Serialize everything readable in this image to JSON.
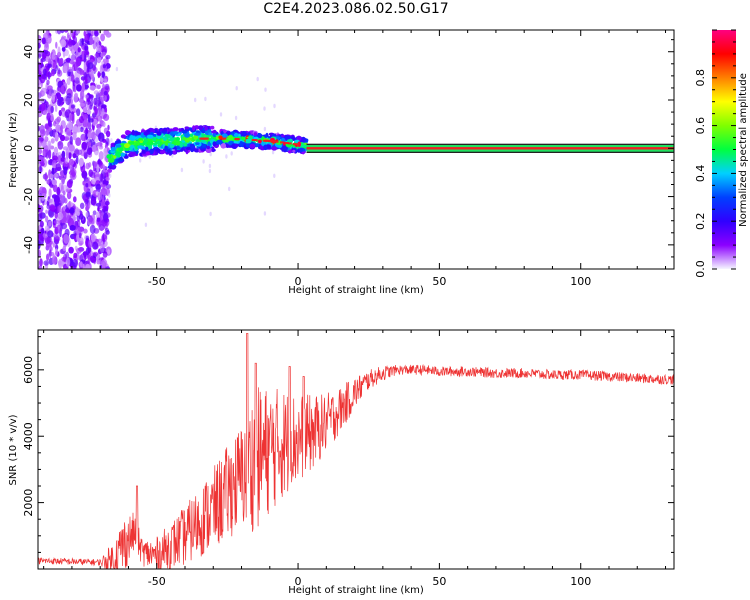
{
  "title": "C2E4.2023.086.02.50.G17",
  "colors": {
    "spectrum_low": "#8a2be2",
    "snr_line": "#ee3333",
    "center_line": "#ee2222",
    "colorbar": [
      "#f5f5ff",
      "#8b00ff",
      "#3000ff",
      "#0040ff",
      "#00d0ff",
      "#00ff40",
      "#80ff00",
      "#ffff00",
      "#ff8000",
      "#ff0000",
      "#ff0080"
    ]
  },
  "chart_data": [
    {
      "type": "heatmap",
      "xlabel": "Height of straight line (km)",
      "ylabel": "Frequency (Hz)",
      "xlim": [
        -92,
        133
      ],
      "ylim": [
        -50,
        49
      ],
      "xticks": [
        -50,
        0,
        50,
        100
      ],
      "xtick_labels": [
        "-50",
        "0",
        "50",
        "100"
      ],
      "yticks": [
        -40,
        -20,
        0,
        20,
        40
      ],
      "ytick_labels": [
        "-40",
        "-20",
        "0",
        "20",
        "40"
      ],
      "colorbar": {
        "label": "Normalized spectral amplitude",
        "range": [
          0,
          1
        ],
        "ticks": [
          0.0,
          0.2,
          0.4,
          0.6,
          0.8
        ],
        "tick_labels": [
          "0.0",
          "0.2",
          "0.4",
          "0.6",
          "0.8"
        ]
      },
      "regions": [
        {
          "name": "noise",
          "x": [
            -92,
            -67
          ],
          "freq": [
            -50,
            49
          ],
          "amplitude": 0.08
        },
        {
          "name": "trace",
          "x": [
            -67,
            3
          ],
          "center_freq": [
            -5,
            2,
            3,
            4,
            4,
            3,
            1
          ],
          "center_x": [
            -67,
            -60,
            -45,
            -35,
            -25,
            -10,
            3
          ],
          "amplitude": 0.45
        },
        {
          "name": "carrier",
          "x": [
            3,
            133
          ],
          "freq": 0,
          "amplitude": 1.0
        }
      ]
    },
    {
      "type": "line",
      "xlabel": "Height of straight line (km)",
      "ylabel": "SNR (10 * v/v)",
      "xlim": [
        -92,
        133
      ],
      "ylim": [
        0,
        7200
      ],
      "xticks": [
        -50,
        0,
        50,
        100
      ],
      "xtick_labels": [
        "-50",
        "0",
        "50",
        "100"
      ],
      "yticks": [
        2000,
        4000,
        6000
      ],
      "ytick_labels": [
        "2000",
        "4000",
        "6000"
      ],
      "envelope": {
        "x": [
          -92,
          -70,
          -65,
          -62,
          -58,
          -55,
          -50,
          -45,
          -40,
          -35,
          -30,
          -25,
          -20,
          -15,
          -10,
          -5,
          0,
          5,
          10,
          15,
          20,
          25,
          30,
          35,
          40,
          45,
          50,
          60,
          70,
          80,
          90,
          100,
          110,
          120,
          133
        ],
        "y": [
          250,
          200,
          300,
          700,
          1100,
          500,
          400,
          700,
          1000,
          1400,
          1800,
          2300,
          2800,
          3300,
          3600,
          3800,
          3900,
          4100,
          4400,
          4800,
          5300,
          5700,
          5900,
          6000,
          6000,
          6000,
          5950,
          5950,
          5900,
          5900,
          5850,
          5850,
          5800,
          5750,
          5700
        ]
      },
      "noise_amplitude": {
        "x": [
          -92,
          -70,
          -62,
          -55,
          -40,
          -20,
          -15,
          0,
          10,
          25,
          35,
          133
        ],
        "a": [
          100,
          100,
          900,
          400,
          900,
          1600,
          2200,
          1400,
          900,
          300,
          150,
          150
        ]
      },
      "spikes": [
        {
          "x": -57,
          "y": 2500
        },
        {
          "x": -18,
          "y": 7100
        },
        {
          "x": -15,
          "y": 6200
        },
        {
          "x": -3,
          "y": 6100
        },
        {
          "x": 2,
          "y": 5800
        }
      ]
    }
  ]
}
